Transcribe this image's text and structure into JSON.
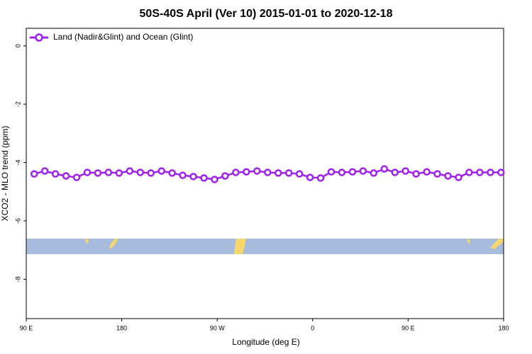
{
  "chart_data": {
    "type": "line",
    "title": "50S-40S April (Ver 10)   2015-01-01 to 2020-12-18",
    "x_label": "Longitude (deg E)",
    "y_label": "XCO2 - MLO trend (ppm)",
    "x": [
      97.5,
      107.5,
      117.5,
      127.5,
      137.5,
      147.5,
      157.5,
      167.5,
      177.5,
      187.5,
      197.5,
      207.5,
      217.5,
      227.5,
      237.5,
      247.5,
      257.5,
      267.5,
      277.5,
      287.5,
      297.5,
      307.5,
      317.5,
      327.5,
      337.5,
      347.5,
      357.5,
      367.5,
      377.5,
      387.5,
      397.5,
      407.5,
      417.5,
      427.5,
      437.5,
      447.5,
      457.5,
      467.5,
      477.5,
      487.5,
      497.5,
      507.5,
      517.5,
      527.5,
      537.5
    ],
    "series": [
      {
        "name": "Land (Nadir&Glint) and Ocean (Glint)",
        "color": "#a020f0",
        "values": [
          -4.39,
          -4.29,
          -4.39,
          -4.46,
          -4.51,
          -4.34,
          -4.36,
          -4.34,
          -4.36,
          -4.29,
          -4.34,
          -4.36,
          -4.29,
          -4.36,
          -4.44,
          -4.48,
          -4.53,
          -4.58,
          -4.46,
          -4.34,
          -4.32,
          -4.29,
          -4.34,
          -4.36,
          -4.36,
          -4.39,
          -4.51,
          -4.53,
          -4.32,
          -4.34,
          -4.32,
          -4.29,
          -4.36,
          -4.22,
          -4.34,
          -4.29,
          -4.39,
          -4.32,
          -4.39,
          -4.46,
          -4.51,
          -4.34,
          -4.34,
          -4.34,
          -4.34
        ]
      }
    ],
    "xlim": [
      90,
      540
    ],
    "xticks": [
      {
        "value": 90,
        "label": "90 E"
      },
      {
        "value": 180,
        "label": "180"
      },
      {
        "value": 270,
        "label": "90 W"
      },
      {
        "value": 360,
        "label": "0"
      },
      {
        "value": 450,
        "label": "90 E"
      },
      {
        "value": 540,
        "label": "180"
      }
    ],
    "ylim": [
      -9.35,
      0.6
    ],
    "yticks": [
      0,
      -2,
      -4,
      -6,
      -8
    ],
    "legend": "top-left"
  }
}
